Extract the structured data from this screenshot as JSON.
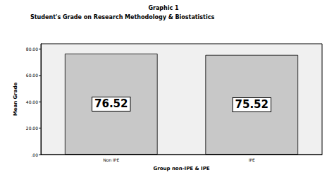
{
  "chart_data": {
    "type": "bar",
    "title": "Graphic 1",
    "subtitle": "Student's Grade on Research Methodology & Biostatistics",
    "x_label": "Group non-IPE & IPE",
    "y_label": "Mean Grade",
    "categories": [
      "Non IPE",
      "IPE"
    ],
    "values": [
      76.52,
      75.52
    ],
    "color": "#c8c8c8",
    "ylim": [
      0,
      84
    ],
    "yticks": [
      {
        "value": 0,
        "label": ".00"
      },
      {
        "value": 20,
        "label": "20.00"
      },
      {
        "value": 40,
        "label": "40.00"
      },
      {
        "value": 60,
        "label": "60.00"
      },
      {
        "value": 80,
        "label": "80.00"
      }
    ],
    "grid": false,
    "data_labels": true
  }
}
